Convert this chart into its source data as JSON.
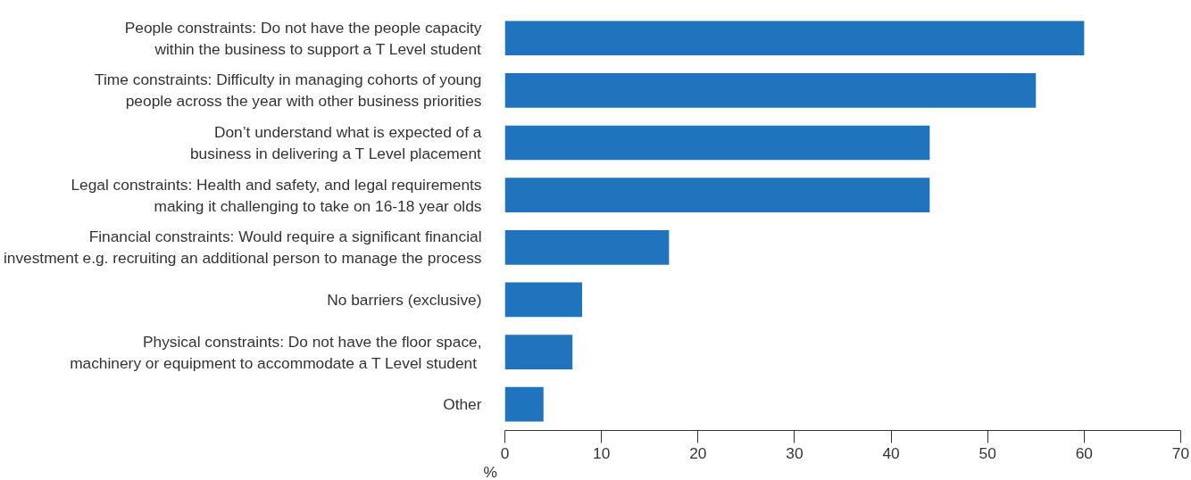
{
  "chart_data": {
    "type": "bar",
    "orientation": "horizontal",
    "xlabel": "%",
    "categories": [
      "People constraints: Do not have the people capacity within the business to support a T Level student",
      "Time constraints: Difficulty in managing cohorts of young people across the year with other business priorities",
      "Don’t understand what is expected of a business in delivering a T Level placement",
      "Legal constraints: Health and safety, and legal requirements making it challenging to take on 16-18 year olds",
      "Financial constraints: Would require a significant financial investment e.g. recruiting an additional person to manage the process",
      "No barriers (exclusive)",
      "Physical constraints: Do not have the floor space, machinery or equipment to accommodate  a T Level student",
      "Other"
    ],
    "values": [
      60,
      55,
      44,
      44,
      17,
      8,
      7,
      4
    ],
    "color": "#1f74bd",
    "xlim": [
      0,
      70
    ],
    "xticks": [
      0,
      10,
      20,
      30,
      40,
      50,
      60,
      70
    ],
    "grid": false
  }
}
